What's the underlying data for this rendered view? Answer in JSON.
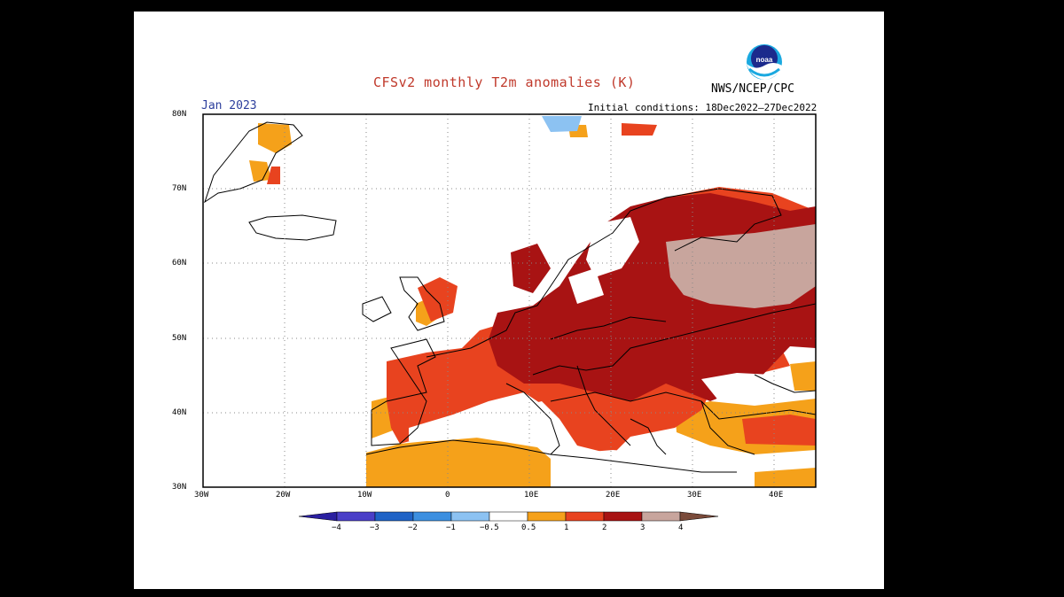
{
  "header": {
    "title": "CFSv2 monthly T2m anomalies (K)",
    "agency": "NWS/NCEP/CPC",
    "month": "Jan 2023",
    "initial_conditions": "Initial conditions: 18Dec2022–27Dec2022"
  },
  "axes": {
    "lat_labels": [
      "80N",
      "70N",
      "60N",
      "50N",
      "40N",
      "30N"
    ],
    "lon_labels": [
      "30W",
      "20W",
      "10W",
      "0",
      "10E",
      "20E",
      "30E",
      "40E"
    ]
  },
  "colorbar": {
    "ticks": [
      "−4",
      "−3",
      "−2",
      "−1",
      "−0.5",
      "0.5",
      "1",
      "2",
      "3",
      "4"
    ],
    "colors": [
      "#2a1fa0",
      "#4a3fc8",
      "#1f63c6",
      "#3c8fe0",
      "#8cc2f2",
      "#ffffff",
      "#f5a11a",
      "#e8431f",
      "#a81313",
      "#c8a59d",
      "#7a4a3a"
    ]
  },
  "legend_colors": {
    "anomaly_0_5_1": "#f5a11a",
    "anomaly_1_2": "#e8431f",
    "anomaly_2_3": "#a81313",
    "anomaly_3_4": "#c8a59d",
    "anomaly_neg": "#8cc2f2"
  },
  "icons": {
    "logo": "noaa-logo"
  }
}
